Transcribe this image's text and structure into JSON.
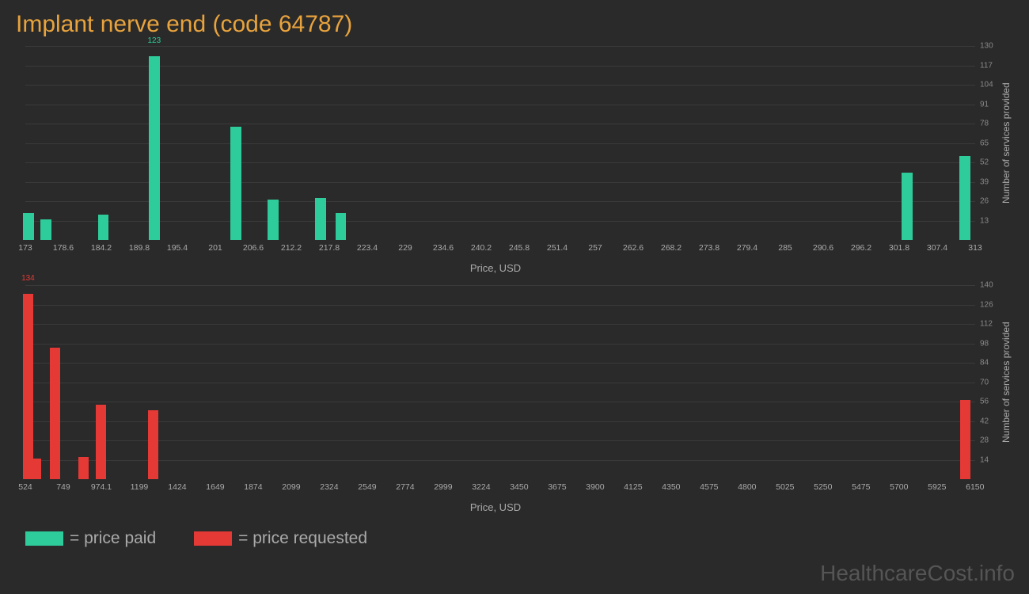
{
  "title": "Implant nerve end (code 64787)",
  "background_color": "#2a2a2a",
  "grid_color": "#3a3a3a",
  "title_color": "#e8a33d",
  "axis_text_color": "#aaaaaa",
  "title_fontsize": 30,
  "chart1": {
    "type": "bar",
    "bar_color": "#2ecc9a",
    "xlabel": "Price, USD",
    "ylabel": "Number of services provided",
    "xlim": [
      173,
      313
    ],
    "xtick_step": 5.6,
    "xticks": [
      "173",
      "178.6",
      "184.2",
      "189.8",
      "195.4",
      "201",
      "206.6",
      "212.2",
      "217.8",
      "223.4",
      "229",
      "234.6",
      "240.2",
      "245.8",
      "251.4",
      "257",
      "262.6",
      "268.2",
      "273.8",
      "279.4",
      "285",
      "290.6",
      "296.2",
      "301.8",
      "307.4",
      "313"
    ],
    "ylim": [
      0,
      130
    ],
    "yticks": [
      13,
      26,
      39,
      52,
      65,
      78,
      91,
      104,
      117,
      130
    ],
    "bars": [
      {
        "x": 173.5,
        "value": 18
      },
      {
        "x": 176.0,
        "value": 14
      },
      {
        "x": 184.5,
        "value": 17
      },
      {
        "x": 192.0,
        "value": 123,
        "label": "123"
      },
      {
        "x": 204.0,
        "value": 76
      },
      {
        "x": 209.5,
        "value": 27
      },
      {
        "x": 216.5,
        "value": 28
      },
      {
        "x": 219.5,
        "value": 18
      },
      {
        "x": 303.0,
        "value": 45
      },
      {
        "x": 311.5,
        "value": 56
      }
    ],
    "bar_width_x": 1.6
  },
  "chart2": {
    "type": "bar",
    "bar_color": "#e53935",
    "xlabel": "Price, USD",
    "ylabel": "Number of services provided",
    "xlim": [
      524,
      6150
    ],
    "xtick_step": 225,
    "xticks": [
      "524",
      "749",
      "974.1",
      "1199",
      "1424",
      "1649",
      "1874",
      "2099",
      "2324",
      "2549",
      "2774",
      "2999",
      "3224",
      "3450",
      "3675",
      "3900",
      "4125",
      "4350",
      "4575",
      "4800",
      "5025",
      "5250",
      "5475",
      "5700",
      "5925",
      "6150"
    ],
    "ylim": [
      0,
      140
    ],
    "yticks": [
      14,
      28,
      42,
      56,
      70,
      84,
      98,
      112,
      126,
      140
    ],
    "bars": [
      {
        "x": 540,
        "value": 134,
        "label": "134"
      },
      {
        "x": 590,
        "value": 15
      },
      {
        "x": 700,
        "value": 95
      },
      {
        "x": 870,
        "value": 16
      },
      {
        "x": 970,
        "value": 54
      },
      {
        "x": 1280,
        "value": 50
      },
      {
        "x": 6090,
        "value": 57
      }
    ],
    "bar_width_x": 60
  },
  "legend": {
    "paid": {
      "label": "= price paid",
      "color": "#2ecc9a"
    },
    "requested": {
      "label": "= price requested",
      "color": "#e53935"
    }
  },
  "watermark": "HealthcareCost.info"
}
